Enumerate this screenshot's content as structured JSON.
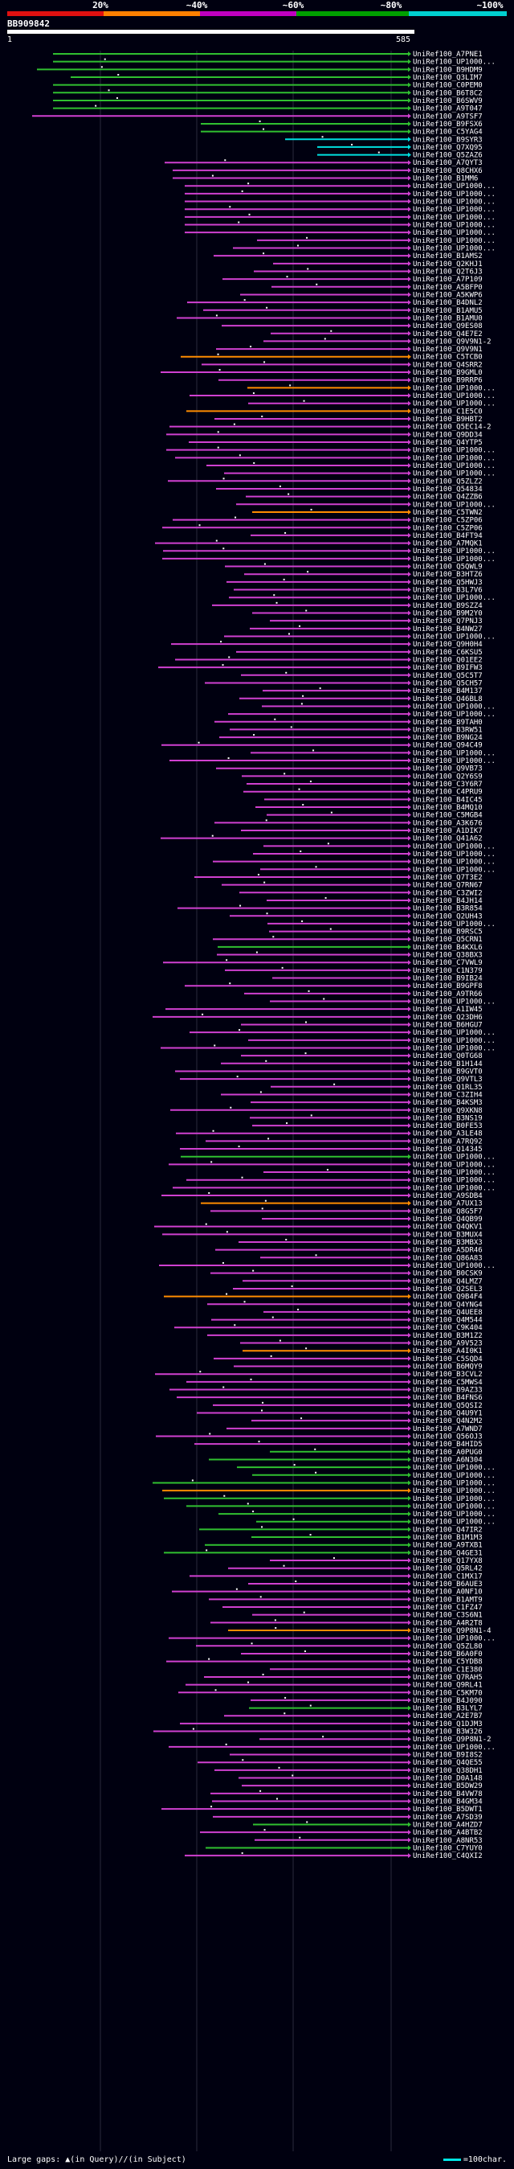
{
  "query": {
    "id": "BB909842",
    "start": "1",
    "end": "585"
  },
  "legend": {
    "labels": [
      "20%",
      "~40%",
      "~60%",
      "~80%",
      "~100%"
    ],
    "colors": [
      "#e01010",
      "#ff8000",
      "#c000c0",
      "#00a000",
      "#00d0d0"
    ]
  },
  "footer": {
    "large_gaps_label": "Large gaps:",
    "large_gaps_text": "(in Query)/",
    "large_gaps_text2": "(in Subject)",
    "scale_label": "=100char."
  },
  "hit_colors": {
    "cyan": "#00e0e0",
    "green": "#30c030",
    "orange": "#ff8c00",
    "magenta": "#d040d0"
  },
  "hits": [
    "UniRef100_A7PNE1",
    "UniRef100_UP1000...",
    "UniRef100_B9HDM9",
    "UniRef100_Q3LIM7",
    "UniRef100_C0PEM0",
    "UniRef100_B6T8C2",
    "UniRef100_B6SWV9",
    "UniRef100_A9T047",
    "UniRef100_A9TSF7",
    "UniRef100_B9FSX6",
    "UniRef100_C5YAG4",
    "UniRef100_B9SYR3",
    "UniRef100_Q7XQ95",
    "UniRef100_Q5ZAZ6",
    "UniRef100_A7QYT3",
    "UniRef100_Q8CHX6",
    "UniRef100_B1MM6",
    "UniRef100_UP1000...",
    "UniRef100_UP1000...",
    "UniRef100_UP1000...",
    "UniRef100_UP1000...",
    "UniRef100_UP1000...",
    "UniRef100_UP1000...",
    "UniRef100_UP1000...",
    "UniRef100_UP1000...",
    "UniRef100_UP1000...",
    "UniRef100_B1AMS2",
    "UniRef100_Q2KHJ1",
    "UniRef100_Q2T6J3",
    "UniRef100_A7P109",
    "UniRef100_A5BFP0",
    "UniRef100_A5KWP6",
    "UniRef100_B4DNL2",
    "UniRef100_B1AMU5",
    "UniRef100_B1AMU0",
    "UniRef100_Q9ES08",
    "UniRef100_Q4E7E2",
    "UniRef100_Q9V9N1-2",
    "UniRef100_Q9V9N1",
    "UniRef100_C5TCB0",
    "UniRef100_Q4SRR2",
    "UniRef100_B9GML0",
    "UniRef100_B9RRP6",
    "UniRef100_UP1000...",
    "UniRef100_UP1000...",
    "UniRef100_UP1000...",
    "UniRef100_C1E5C0",
    "UniRef100_B9HBT2",
    "UniRef100_Q5EC14-2",
    "UniRef100_Q9DD34",
    "UniRef100_Q4YTP5",
    "UniRef100_UP1000...",
    "UniRef100_UP1000...",
    "UniRef100_UP1000...",
    "UniRef100_UP1000...",
    "UniRef100_Q5ZLZ2",
    "UniRef100_Q54834",
    "UniRef100_Q4ZZB6",
    "UniRef100_UP1000...",
    "UniRef100_C5TWN2",
    "UniRef100_C5ZP06",
    "UniRef100_C5ZP06",
    "UniRef100_B4FT94",
    "UniRef100_A7MQK1",
    "UniRef100_UP1000...",
    "UniRef100_UP1000...",
    "UniRef100_Q5QWL9",
    "UniRef100_B3HTZ6",
    "UniRef100_Q5HWJ3",
    "UniRef100_B3L7V6",
    "UniRef100_UP1000...",
    "UniRef100_B9SZZ4",
    "UniRef100_B9M2Y0",
    "UniRef100_Q7PNJ3",
    "UniRef100_B4NW27",
    "UniRef100_UP1000...",
    "UniRef100_Q9H0H4",
    "UniRef100_C6KSU5",
    "UniRef100_Q01EE2",
    "UniRef100_B9IFW3",
    "UniRef100_Q5C5T7",
    "UniRef100_Q5CH57",
    "UniRef100_B4M137",
    "UniRef100_Q46BL8",
    "UniRef100_UP1000...",
    "UniRef100_UP1000...",
    "UniRef100_B9TAH0",
    "UniRef100_B3RW51",
    "UniRef100_B9NG24",
    "UniRef100_Q94C49",
    "UniRef100_UP1000...",
    "UniRef100_UP1000...",
    "UniRef100_Q9VB73",
    "UniRef100_Q2Y6S9",
    "UniRef100_C3Y6R7",
    "UniRef100_C4PRU9",
    "UniRef100_B4IC45",
    "UniRef100_B4MQ10",
    "UniRef100_C5MGB4",
    "UniRef100_A3K676",
    "UniRef100_A1DIK7",
    "UniRef100_Q41A62",
    "UniRef100_UP1000...",
    "UniRef100_UP1000...",
    "UniRef100_UP1000...",
    "UniRef100_UP1000...",
    "UniRef100_Q7T3E2",
    "UniRef100_Q7RN67",
    "UniRef100_C3ZWI2",
    "UniRef100_B4JH14",
    "UniRef100_B3R854",
    "UniRef100_Q2UH43",
    "UniRef100_UP1000...",
    "UniRef100_B9RSC5",
    "UniRef100_Q5CRN1",
    "UniRef100_B4KXL6",
    "UniRef100_Q38BX3",
    "UniRef100_C7VWL9",
    "UniRef100_C1N379",
    "UniRef100_B9IB24",
    "UniRef100_B9GPF8",
    "UniRef100_A9TR66",
    "UniRef100_UP1000...",
    "UniRef100_A1IW45",
    "UniRef100_Q23DH6",
    "UniRef100_B6HGU7",
    "UniRef100_UP1000...",
    "UniRef100_UP1000...",
    "UniRef100_UP1000...",
    "UniRef100_Q0TG68",
    "UniRef100_B1H144",
    "UniRef100_B9GVT0",
    "UniRef100_Q9VTL3",
    "UniRef100_Q1RL35",
    "UniRef100_C3ZIH4",
    "UniRef100_B4KSM3",
    "UniRef100_Q9XKN8",
    "UniRef100_B3NS19",
    "UniRef100_B0FE53",
    "UniRef100_A3LE48",
    "UniRef100_A7RQ92",
    "UniRef100_Q14345",
    "UniRef100_UP1000...",
    "UniRef100_UP1000...",
    "UniRef100_UP1000...",
    "UniRef100_UP1000...",
    "UniRef100_UP1000...",
    "UniRef100_A9SDB4",
    "UniRef100_A7UX13",
    "UniRef100_Q8G5F7",
    "UniRef100_Q4QB99",
    "UniRef100_Q4QKV1",
    "UniRef100_B3MUX4",
    "UniRef100_B3MBX3",
    "UniRef100_A5DR46",
    "UniRef100_Q86A83",
    "UniRef100_UP1000...",
    "UniRef100_B0CSK9",
    "UniRef100_Q4LMZ7",
    "UniRef100_Q2SEL3",
    "UniRef100_Q9B4F4",
    "UniRef100_Q4YNG4",
    "UniRef100_Q4UEE8",
    "UniRef100_Q4M544",
    "UniRef100_C9K404",
    "UniRef100_B3M1Z2",
    "UniRef100_A9V523",
    "UniRef100_A4I0K1",
    "UniRef100_C5SQD4",
    "UniRef100_B6MQY9",
    "UniRef100_B3CVL2",
    "UniRef100_C5MWS4",
    "UniRef100_B9AZ33",
    "UniRef100_B4FNS6",
    "UniRef100_Q5QSI2",
    "UniRef100_Q4U9Y1",
    "UniRef100_Q4N2M2",
    "UniRef100_A7WND7",
    "UniRef100_Q56OJ3",
    "UniRef100_B4HID5",
    "UniRef100_A0PUG0",
    "UniRef100_A6N304",
    "UniRef100_UP1000...",
    "UniRef100_UP1000...",
    "UniRef100_UP1000...",
    "UniRef100_UP1000...",
    "UniRef100_UP1000...",
    "UniRef100_UP1000...",
    "UniRef100_UP1000...",
    "UniRef100_UP1000...",
    "UniRef100_Q47IR2",
    "UniRef100_B1M1M3",
    "UniRef100_A9TXB1",
    "UniRef100_Q4GE31",
    "UniRef100_Q17YX8",
    "UniRef100_Q5RL42",
    "UniRef100_C1MX17",
    "UniRef100_B6AUE3",
    "UniRef100_A0NF10",
    "UniRef100_B1AMT9",
    "UniRef100_C1FZ47",
    "UniRef100_C3S6N1",
    "UniRef100_A4R2T8",
    "UniRef100_Q9P8N1-4",
    "UniRef100_UP1000...",
    "UniRef100_Q5ZL80",
    "UniRef100_B6A0F0",
    "UniRef100_C5YDB8",
    "UniRef100_C1E380",
    "UniRef100_Q7RAH5",
    "UniRef100_Q9RL41",
    "UniRef100_C5KM70",
    "UniRef100_B4J090",
    "UniRef100_B3LYL7",
    "UniRef100_A2E7B7",
    "UniRef100_Q1DJM3",
    "UniRef100_B3W326",
    "UniRef100_Q9P8N1-2",
    "UniRef100_UP1000...",
    "UniRef100_B9I8S2",
    "UniRef100_Q4QE55",
    "UniRef100_Q38DH1",
    "UniRef100_D0A148",
    "UniRef100_B5DW29",
    "UniRef100_B4VW78",
    "UniRef100_B4GM34",
    "UniRef100_B5DWT1",
    "UniRef100_A7SD39",
    "UniRef100_A4HZD7",
    "UniRef100_A4BTB2",
    "UniRef100_A8NR53",
    "UniRef100_C7YUY0",
    "UniRef100_C4QXI2"
  ]
}
